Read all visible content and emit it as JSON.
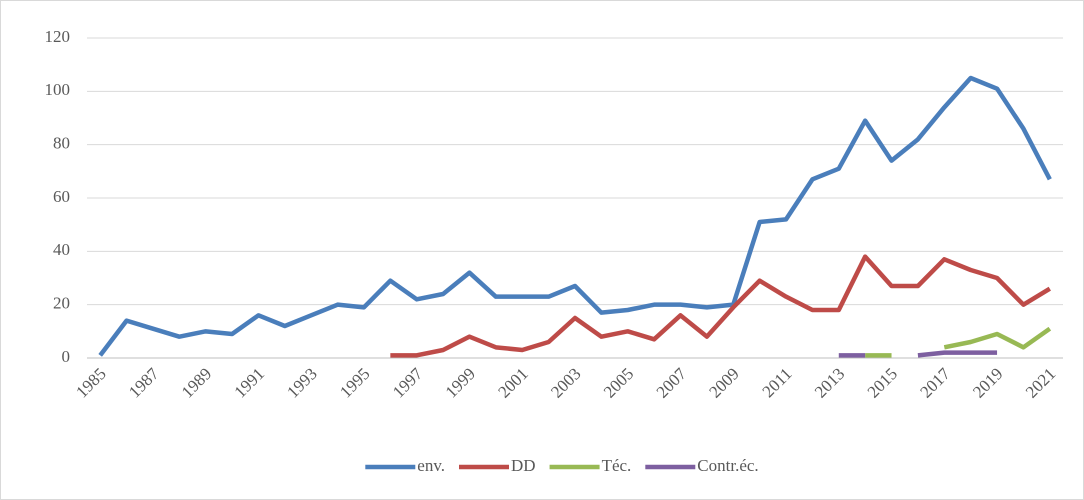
{
  "chart_data": {
    "type": "line",
    "categories": [
      "1985",
      null,
      "1987",
      null,
      "1989",
      null,
      "1991",
      null,
      "1993",
      null,
      "1995",
      null,
      "1997",
      null,
      "1999",
      null,
      "2001",
      null,
      "2003",
      null,
      "2005",
      null,
      "2007",
      null,
      "2009",
      null,
      "2011",
      null,
      "2013",
      null,
      "2015",
      null,
      "2017",
      null,
      "2019",
      null,
      "2021"
    ],
    "series": [
      {
        "name": "env.",
        "color": "#4a7ebb",
        "values": [
          1,
          14,
          11,
          8,
          10,
          9,
          16,
          12,
          16,
          20,
          19,
          29,
          22,
          24,
          32,
          23,
          23,
          23,
          27,
          17,
          18,
          20,
          20,
          19,
          20,
          51,
          52,
          67,
          71,
          89,
          74,
          82,
          94,
          105,
          101,
          86,
          67
        ]
      },
      {
        "name": "DD",
        "color": "#be4b48",
        "values": [
          null,
          null,
          null,
          null,
          null,
          null,
          null,
          null,
          null,
          null,
          null,
          1,
          1,
          3,
          8,
          4,
          3,
          6,
          15,
          8,
          10,
          7,
          16,
          8,
          19,
          29,
          23,
          18,
          18,
          38,
          27,
          27,
          37,
          33,
          30,
          20,
          26
        ]
      },
      {
        "name": "Téc.",
        "color": "#98b954",
        "values": [
          null,
          null,
          null,
          null,
          null,
          null,
          null,
          null,
          null,
          null,
          null,
          null,
          null,
          null,
          null,
          null,
          null,
          null,
          null,
          null,
          null,
          null,
          null,
          null,
          null,
          null,
          null,
          null,
          null,
          1,
          1,
          null,
          4,
          6,
          9,
          4,
          11
        ]
      },
      {
        "name": "Contr.éc.",
        "color": "#7d5fa0",
        "values": [
          null,
          null,
          null,
          null,
          null,
          null,
          null,
          null,
          null,
          null,
          null,
          null,
          null,
          null,
          null,
          null,
          null,
          null,
          null,
          null,
          null,
          null,
          null,
          null,
          null,
          null,
          null,
          null,
          1,
          1,
          null,
          1,
          2,
          2,
          2,
          null,
          null
        ]
      }
    ],
    "ylim": [
      0,
      120
    ],
    "yticks": [
      0,
      20,
      40,
      60,
      80,
      100,
      120
    ],
    "grid": true,
    "legend": "bottom"
  }
}
